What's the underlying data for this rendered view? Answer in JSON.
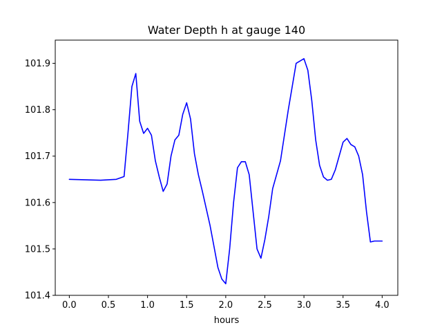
{
  "chart_data": {
    "type": "line",
    "title": "Water Depth h at gauge 140",
    "xlabel": "hours",
    "ylabel": "",
    "xlim": [
      -0.18,
      4.2
    ],
    "ylim": [
      101.4,
      101.95
    ],
    "xticks": [
      0.0,
      0.5,
      1.0,
      1.5,
      2.0,
      2.5,
      3.0,
      3.5,
      4.0
    ],
    "xtick_labels": [
      "0.0",
      "0.5",
      "1.0",
      "1.5",
      "2.0",
      "2.5",
      "3.0",
      "3.5",
      "4.0"
    ],
    "yticks": [
      101.4,
      101.5,
      101.6,
      101.7,
      101.8,
      101.9
    ],
    "ytick_labels": [
      "101.4",
      "101.5",
      "101.6",
      "101.7",
      "101.8",
      "101.9"
    ],
    "grid": false,
    "series": [
      {
        "color": "#0000ff",
        "x": [
          0.0,
          0.2,
          0.4,
          0.6,
          0.7,
          0.75,
          0.8,
          0.85,
          0.9,
          0.95,
          1.0,
          1.05,
          1.1,
          1.15,
          1.2,
          1.25,
          1.3,
          1.35,
          1.4,
          1.45,
          1.5,
          1.55,
          1.6,
          1.65,
          1.7,
          1.8,
          1.9,
          1.95,
          2.0,
          2.05,
          2.1,
          2.15,
          2.2,
          2.25,
          2.3,
          2.35,
          2.4,
          2.45,
          2.5,
          2.55,
          2.6,
          2.7,
          2.8,
          2.9,
          3.0,
          3.05,
          3.1,
          3.15,
          3.2,
          3.25,
          3.3,
          3.35,
          3.4,
          3.45,
          3.5,
          3.55,
          3.6,
          3.65,
          3.7,
          3.75,
          3.8,
          3.85,
          3.9,
          3.95,
          4.0
        ],
        "y": [
          101.65,
          101.649,
          101.648,
          101.65,
          101.656,
          101.75,
          101.85,
          101.878,
          101.775,
          101.749,
          101.76,
          101.745,
          101.69,
          101.655,
          101.624,
          101.64,
          101.7,
          101.735,
          101.745,
          101.79,
          101.815,
          101.78,
          101.705,
          101.66,
          101.625,
          101.55,
          101.46,
          101.435,
          101.425,
          101.5,
          101.6,
          101.675,
          101.688,
          101.688,
          101.66,
          101.58,
          101.5,
          101.48,
          101.52,
          101.57,
          101.63,
          101.69,
          101.8,
          101.9,
          101.91,
          101.885,
          101.82,
          101.735,
          101.68,
          101.655,
          101.648,
          101.65,
          101.67,
          101.7,
          101.73,
          101.738,
          101.725,
          101.72,
          101.7,
          101.66,
          101.58,
          101.515,
          101.517,
          101.517,
          101.517
        ]
      }
    ]
  }
}
